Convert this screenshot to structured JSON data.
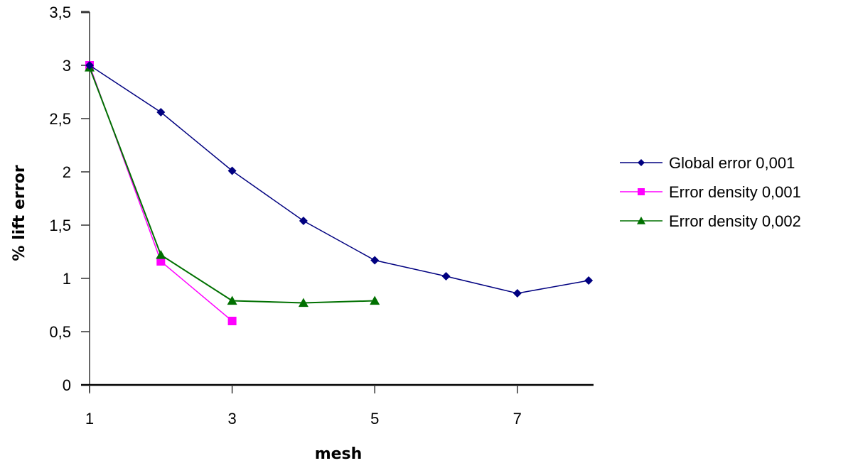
{
  "chart_data": {
    "type": "line",
    "title": "",
    "xlabel": "mesh",
    "ylabel": "% lift error",
    "x": [
      1,
      2,
      3,
      4,
      5,
      6,
      7,
      8
    ],
    "x_tick_labels": [
      "1",
      "3",
      "5",
      "7"
    ],
    "x_ticks": [
      1,
      3,
      5,
      7
    ],
    "y_tick_labels": [
      "0",
      "0,5",
      "1",
      "1,5",
      "2",
      "2,5",
      "3",
      "3,5"
    ],
    "y_ticks": [
      0,
      0.5,
      1,
      1.5,
      2,
      2.5,
      3,
      3.5
    ],
    "xlim": [
      1,
      8.1
    ],
    "ylim": [
      0,
      3.5
    ],
    "grid": false,
    "legend_position": "right",
    "series": [
      {
        "name": "Global error 0,001",
        "color": "#000080",
        "marker": "diamond",
        "x": [
          1,
          2,
          3,
          4,
          5,
          6,
          7,
          8
        ],
        "values": [
          3.0,
          2.56,
          2.01,
          1.54,
          1.17,
          1.02,
          0.86,
          0.98
        ]
      },
      {
        "name": "Error density 0,001",
        "color": "#ff00ff",
        "marker": "square",
        "x": [
          1,
          2,
          3
        ],
        "values": [
          3.0,
          1.16,
          0.6
        ]
      },
      {
        "name": "Error density 0,002",
        "color": "#007000",
        "marker": "triangle",
        "x": [
          1,
          2,
          3,
          4,
          5
        ],
        "values": [
          2.98,
          1.22,
          0.79,
          0.77,
          0.79
        ]
      }
    ]
  }
}
